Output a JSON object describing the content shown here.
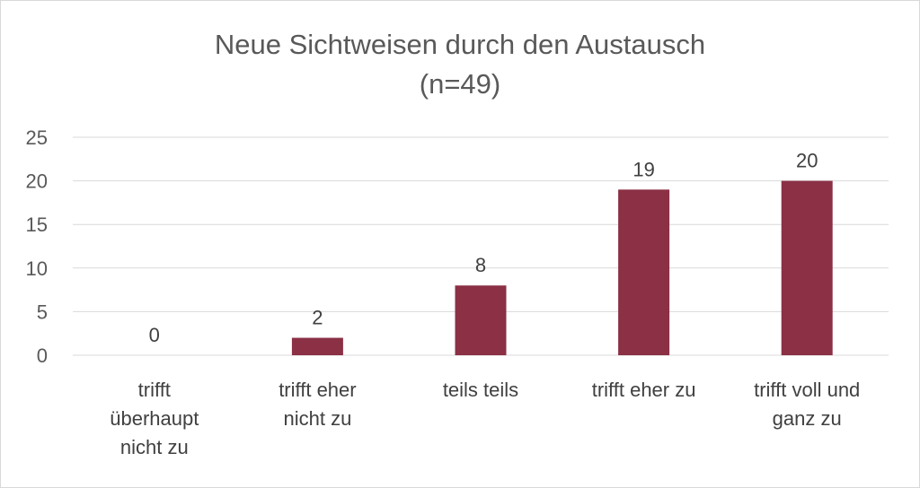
{
  "chart_data": {
    "type": "bar",
    "title": "Neue Sichtweisen durch den Austausch",
    "subtitle": "(n=49)",
    "categories": [
      [
        "trifft",
        "überhaupt",
        "nicht zu"
      ],
      [
        "trifft eher",
        "nicht zu"
      ],
      [
        "teils teils"
      ],
      [
        "trifft eher zu"
      ],
      [
        "trifft voll und",
        "ganz zu"
      ]
    ],
    "values": [
      0,
      2,
      8,
      19,
      20
    ],
    "data_labels": [
      "0",
      "2",
      "8",
      "19",
      "20"
    ],
    "yticks": [
      0,
      5,
      10,
      15,
      20,
      25
    ],
    "ylim": [
      0,
      25
    ],
    "grid": true,
    "legend": "none",
    "colors": {
      "bar": "#8b3045",
      "grid": "#d9d9d9",
      "text": "#595959"
    }
  }
}
